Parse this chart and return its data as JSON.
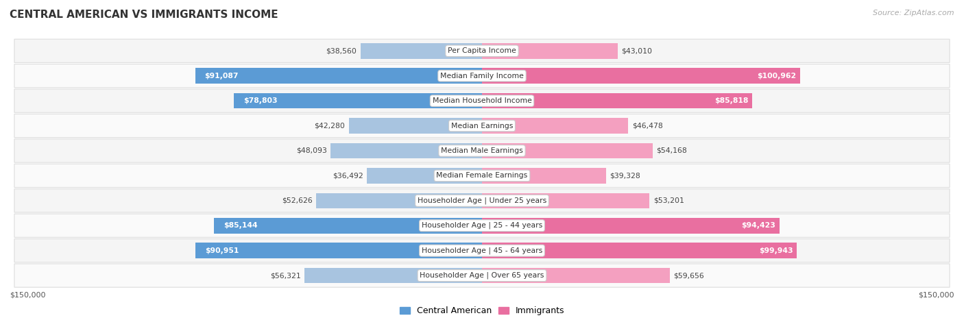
{
  "title": "CENTRAL AMERICAN VS IMMIGRANTS INCOME",
  "source": "Source: ZipAtlas.com",
  "categories": [
    "Per Capita Income",
    "Median Family Income",
    "Median Household Income",
    "Median Earnings",
    "Median Male Earnings",
    "Median Female Earnings",
    "Householder Age | Under 25 years",
    "Householder Age | 25 - 44 years",
    "Householder Age | 45 - 64 years",
    "Householder Age | Over 65 years"
  ],
  "central_american": [
    38560,
    91087,
    78803,
    42280,
    48093,
    36492,
    52626,
    85144,
    90951,
    56321
  ],
  "immigrants": [
    43010,
    100962,
    85818,
    46478,
    54168,
    39328,
    53201,
    94423,
    99943,
    59656
  ],
  "ca_labels": [
    "$38,560",
    "$91,087",
    "$78,803",
    "$42,280",
    "$48,093",
    "$36,492",
    "$52,626",
    "$85,144",
    "$90,951",
    "$56,321"
  ],
  "im_labels": [
    "$43,010",
    "$100,962",
    "$85,818",
    "$46,478",
    "$54,168",
    "$39,328",
    "$53,201",
    "$94,423",
    "$99,943",
    "$59,656"
  ],
  "ca_color_light": "#a8c4e0",
  "ca_color_dark": "#5b9bd5",
  "im_color_light": "#f4a0c0",
  "im_color_dark": "#e96fa0",
  "max_val": 150000,
  "bar_height": 0.62,
  "ca_dark_threshold": 70000,
  "im_dark_threshold": 70000,
  "row_light": "#f5f5f5",
  "row_dark": "#ebebeb",
  "row_border": "#dddddd",
  "title_fontsize": 11,
  "label_fontsize": 7.8,
  "cat_fontsize": 7.8
}
